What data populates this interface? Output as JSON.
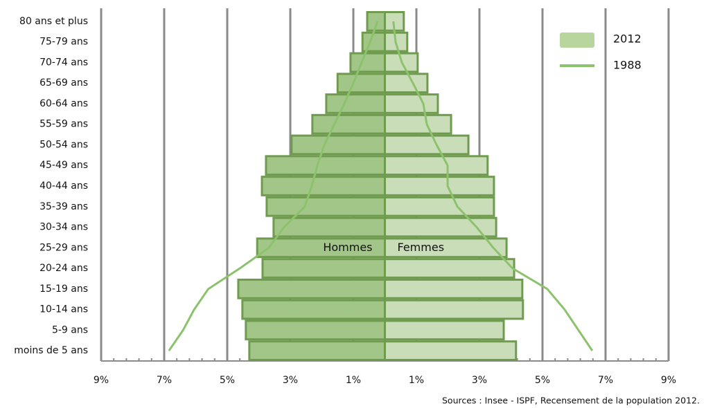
{
  "chart_data": {
    "type": "pyramid",
    "categories": [
      "80 ans et plus",
      "75-79 ans",
      "70-74 ans",
      "65-69 ans",
      "60-64 ans",
      "55-59 ans",
      "50-54 ans",
      "45-49 ans",
      "40-44 ans",
      "35-39 ans",
      "30-34 ans",
      "25-29 ans",
      "20-24 ans",
      "15-19 ans",
      "10-14 ans",
      "5-9 ans",
      "moins de 5 ans"
    ],
    "series": [
      {
        "name": "Hommes",
        "side": "left",
        "color": "#a2c688",
        "bars": [
          0.56,
          0.71,
          1.09,
          1.5,
          1.86,
          2.3,
          2.96,
          3.77,
          3.9,
          3.75,
          3.53,
          4.05,
          3.88,
          4.65,
          4.52,
          4.41,
          4.3
        ],
        "line": [
          0.23,
          0.47,
          0.74,
          1.0,
          1.29,
          1.6,
          1.92,
          2.14,
          2.32,
          2.54,
          3.2,
          3.68,
          4.6,
          5.6,
          6.05,
          6.4,
          6.85
        ]
      },
      {
        "name": "Femmes",
        "side": "right",
        "color": "#c9ddb9",
        "bars": [
          0.6,
          0.71,
          1.04,
          1.35,
          1.68,
          2.1,
          2.65,
          3.26,
          3.46,
          3.46,
          3.53,
          3.86,
          4.1,
          4.36,
          4.38,
          3.77,
          4.16
        ],
        "line": [
          0.27,
          0.34,
          0.54,
          0.89,
          1.22,
          1.33,
          1.64,
          1.99,
          1.99,
          2.3,
          2.91,
          3.44,
          4.05,
          5.15,
          5.7,
          6.14,
          6.58
        ]
      }
    ],
    "legend": [
      {
        "name": "2012",
        "color": "#b7d59d"
      },
      {
        "name": "1988",
        "color": "#8dc26c"
      }
    ],
    "xlim": [
      -9,
      9
    ],
    "xticks": [
      {
        "value": -9,
        "label": "9%"
      },
      {
        "value": -7,
        "label": "7%"
      },
      {
        "value": -5,
        "label": "5%"
      },
      {
        "value": -3,
        "label": "3%"
      },
      {
        "value": -1,
        "label": "1%"
      },
      {
        "value": 1,
        "label": "1%"
      },
      {
        "value": 3,
        "label": "3%"
      },
      {
        "value": 5,
        "label": "5%"
      },
      {
        "value": 7,
        "label": "7%"
      },
      {
        "value": 9,
        "label": "9%"
      }
    ],
    "grid": true,
    "source": "Sources : Insee - ISPF, Recensement de la population 2012."
  }
}
